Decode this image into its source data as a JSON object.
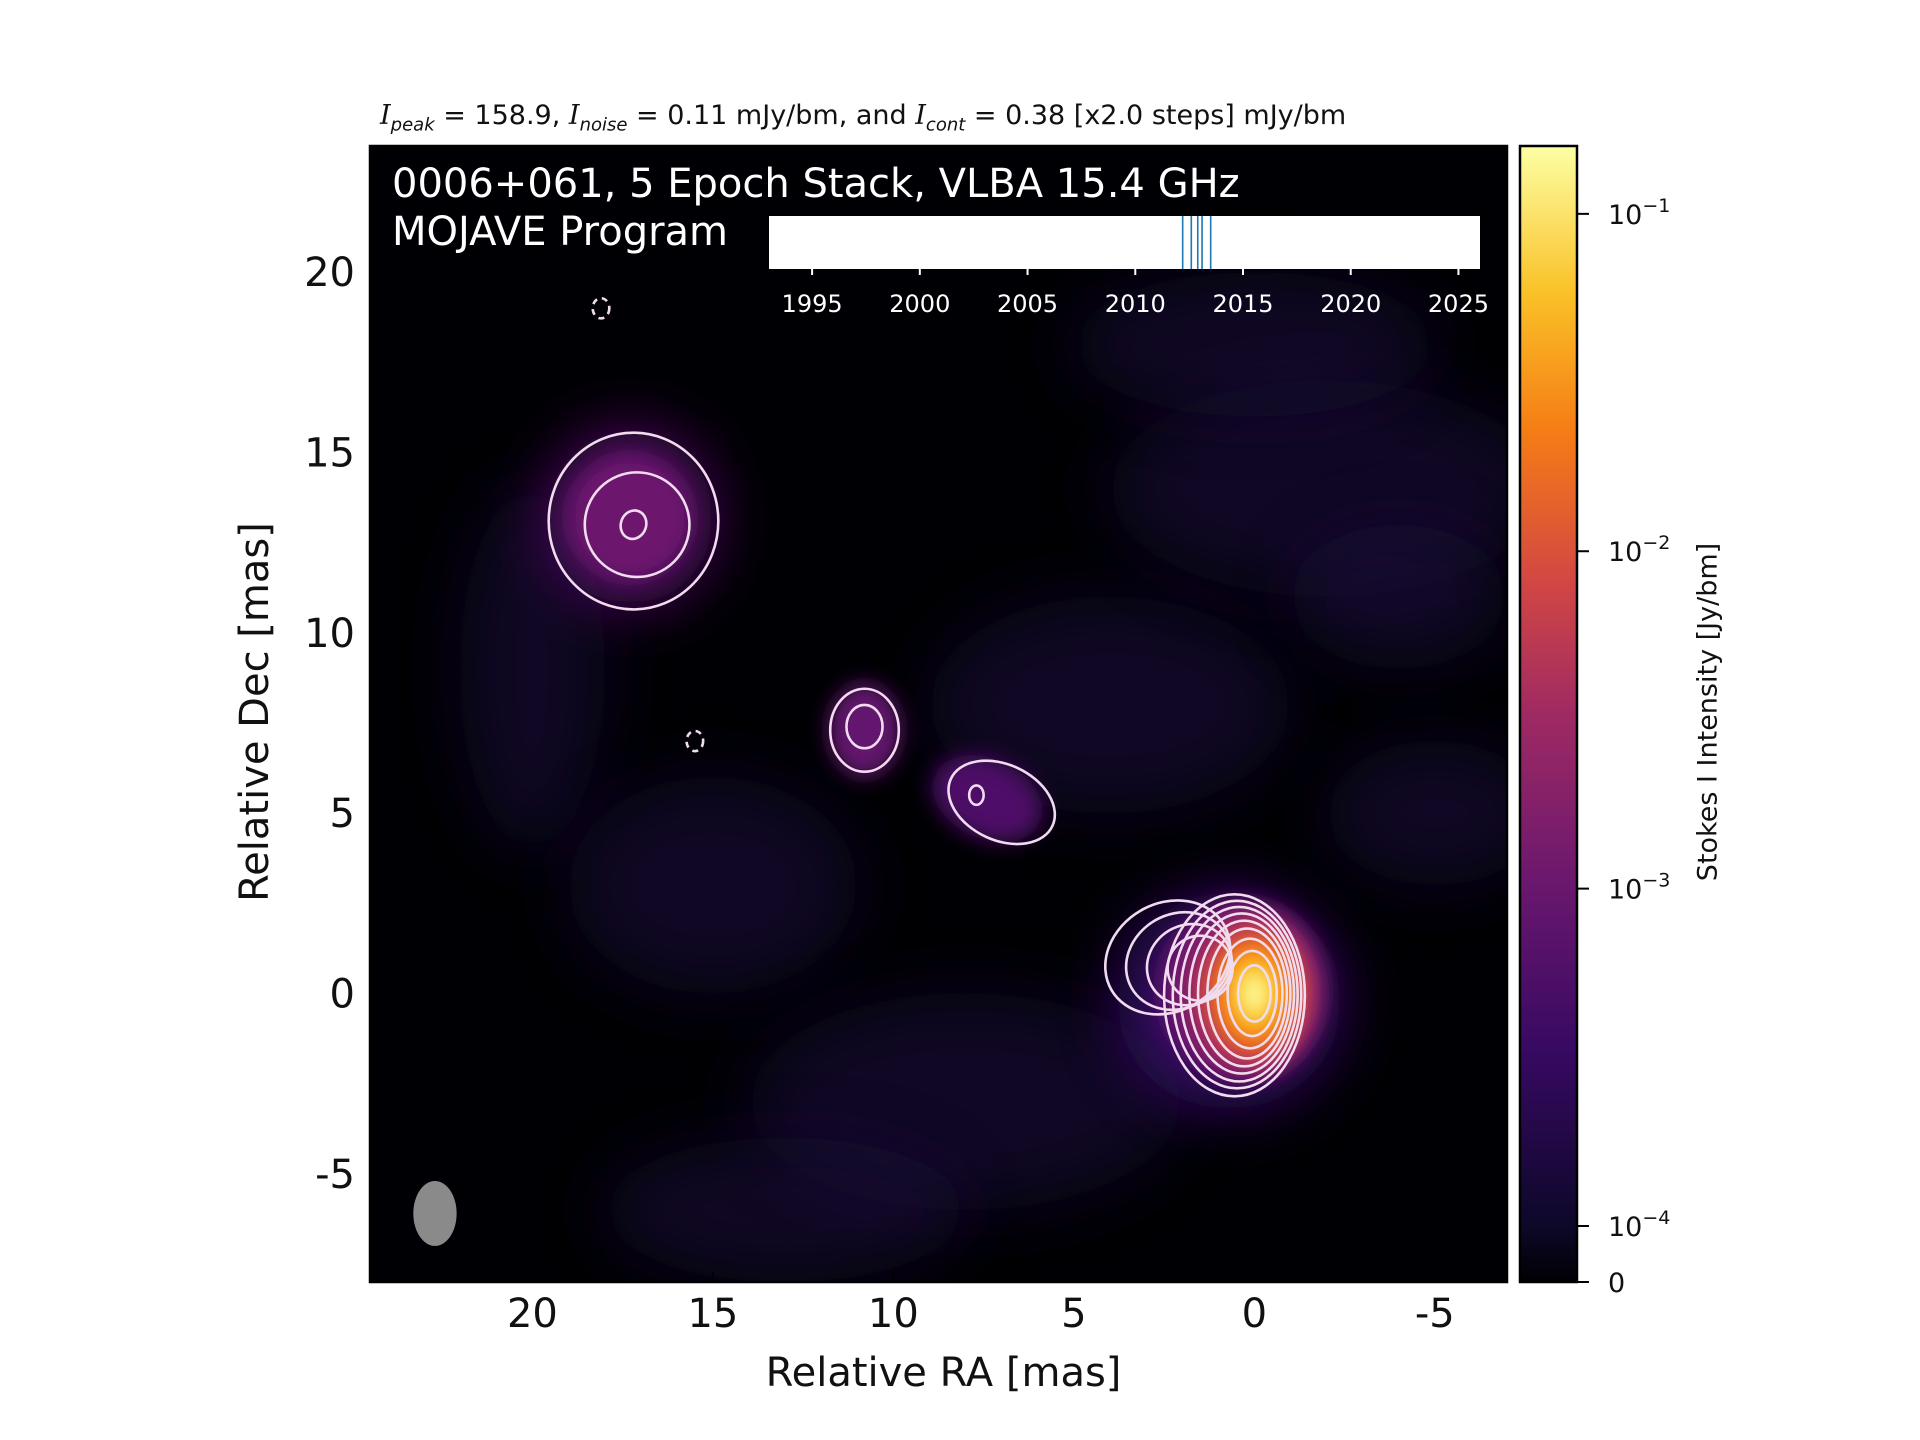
{
  "header": {
    "title_parts": [
      {
        "k": "i",
        "t": "I"
      },
      {
        "k": "sub",
        "t": "peak"
      },
      {
        "k": "t",
        "t": " = 158.9, "
      },
      {
        "k": "i",
        "t": "I"
      },
      {
        "k": "sub",
        "t": "noise"
      },
      {
        "k": "t",
        "t": " = 0.11 mJy/bm, and "
      },
      {
        "k": "i",
        "t": "I"
      },
      {
        "k": "sub",
        "t": "cont"
      },
      {
        "k": "t",
        "t": " = 0.38 [x2.0 steps] mJy/bm"
      }
    ],
    "panel_title_line1": "0006+061, 5 Epoch Stack, VLBA 15.4 GHz",
    "panel_title_line2": "MOJAVE Program"
  },
  "chart_data": {
    "type": "heatmap",
    "source": "0006+061",
    "frequency": "15.4 GHz",
    "epochs_stacked": 5,
    "xlabel": "Relative RA [mas]",
    "ylabel": "Relative Dec [mas]",
    "xlim": [
      24.5,
      -7
    ],
    "ylim": [
      -8,
      23.5
    ],
    "x_axis_reversed": true,
    "xticks": [
      20,
      15,
      10,
      5,
      0,
      -5
    ],
    "yticks": [
      -5,
      0,
      5,
      10,
      15,
      20
    ],
    "colorbar": {
      "label": "Stokes I Intensity [Jy/bm]",
      "scale": "log",
      "colormap": "inferno",
      "ticks": [
        {
          "value": 0.1,
          "mant": "10",
          "exp": "−1"
        },
        {
          "value": 0.01,
          "mant": "10",
          "exp": "−2"
        },
        {
          "value": 0.001,
          "mant": "10",
          "exp": "−3"
        },
        {
          "value": 0.0001,
          "mant": "10",
          "exp": "−4"
        },
        {
          "value": 0,
          "label": "0"
        }
      ],
      "vmax": 0.1589
    },
    "peak_mJy_per_beam": 158.9,
    "noise_mJy_per_beam": 0.11,
    "lowest_contour_mJy_per_beam": 0.38,
    "contour_step_factor": 2.0,
    "components": [
      {
        "ra": 0.0,
        "dec": 0.0,
        "peak_mJy": 158.9,
        "contour_levels": 9
      },
      {
        "ra": 17.2,
        "dec": 13.2,
        "contour_levels": 3
      },
      {
        "ra": 10.8,
        "dec": 7.3,
        "contour_levels": 2
      },
      {
        "ra": 7.6,
        "dec": 5.5,
        "contour_levels": 2
      }
    ],
    "negative_contours": [
      {
        "ra": 18.1,
        "dec": 19.0
      },
      {
        "ra": 15.5,
        "dec": 7.0
      }
    ],
    "beam": {
      "ra": 22.7,
      "dec": -6.1,
      "major_mas": 1.8,
      "minor_mas": 1.2,
      "pa_deg": 0
    },
    "epoch_timeline": {
      "xlim": [
        1993,
        2026
      ],
      "ticks": [
        1995,
        2000,
        2005,
        2010,
        2015,
        2020,
        2025
      ],
      "epochs": [
        2012.2,
        2012.6,
        2012.9,
        2013.1,
        2013.5
      ]
    }
  },
  "colors": {
    "background": "#000004",
    "contour": "#f1dcef",
    "epoch_line": "#1f77b4"
  }
}
